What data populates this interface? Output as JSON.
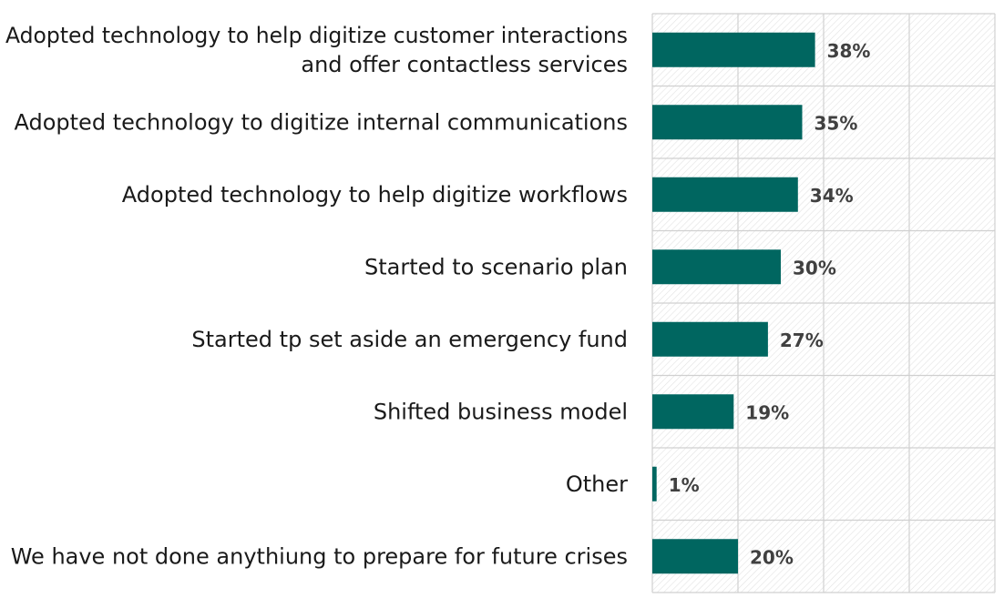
{
  "chart_data": {
    "type": "bar",
    "orientation": "horizontal",
    "categories": [
      [
        "Adopted technology to help digitize customer interactions",
        "and offer contactless services"
      ],
      [
        "Adopted technology to digitize internal communications"
      ],
      [
        "Adopted technology to help digitize workflows"
      ],
      [
        "Started to scenario plan"
      ],
      [
        "Started tp set aside an emergency fund"
      ],
      [
        "Shifted business model"
      ],
      [
        "Other"
      ],
      [
        "We have not done anythiung to prepare for future crises"
      ]
    ],
    "values": [
      38,
      35,
      34,
      30,
      27,
      19,
      1,
      20
    ],
    "value_labels": [
      "38%",
      "35%",
      "34%",
      "30%",
      "27%",
      "19%",
      "1%",
      "20%"
    ],
    "xlim": [
      0,
      80
    ],
    "grid": true,
    "background": "hatched",
    "bar_color": "#006660"
  }
}
